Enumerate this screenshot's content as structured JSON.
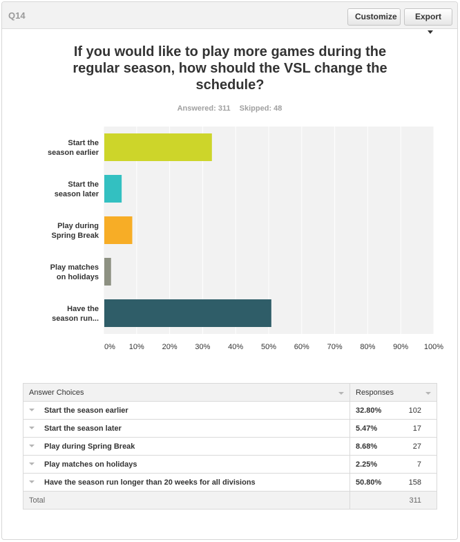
{
  "question": {
    "number": "Q14",
    "title": "If you would like to play more games during the regular season, how should the VSL change the schedule?",
    "answered_label": "Answered: 311",
    "skipped_label": "Skipped: 48"
  },
  "toolbar": {
    "customize_label": "Customize",
    "export_label": "Export"
  },
  "chart_data": {
    "type": "bar",
    "orientation": "horizontal",
    "categories": [
      [
        "Start the",
        "season earlier"
      ],
      [
        "Start the",
        "season later"
      ],
      [
        "Play during",
        "Spring Break"
      ],
      [
        "Play matches",
        "on holidays"
      ],
      [
        "Have the",
        "season run..."
      ]
    ],
    "values": [
      32.8,
      5.47,
      8.68,
      2.25,
      50.8
    ],
    "colors": [
      "#cdd52a",
      "#33c0c1",
      "#f7ad26",
      "#8d9182",
      "#2f5d68"
    ],
    "xlim": [
      0,
      100
    ],
    "ticks": [
      "0%",
      "10%",
      "20%",
      "30%",
      "40%",
      "50%",
      "60%",
      "70%",
      "80%",
      "90%",
      "100%"
    ],
    "grid": true
  },
  "table": {
    "headers": {
      "choices": "Answer Choices",
      "responses": "Responses"
    },
    "rows": [
      {
        "choice": "Start the season earlier",
        "pct": "32.80%",
        "count": "102"
      },
      {
        "choice": "Start the season later",
        "pct": "5.47%",
        "count": "17"
      },
      {
        "choice": "Play during Spring Break",
        "pct": "8.68%",
        "count": "27"
      },
      {
        "choice": "Play matches on holidays",
        "pct": "2.25%",
        "count": "7"
      },
      {
        "choice": "Have the season run longer than 20 weeks for all divisions",
        "pct": "50.80%",
        "count": "158"
      }
    ],
    "total_label": "Total",
    "total_value": "311"
  }
}
